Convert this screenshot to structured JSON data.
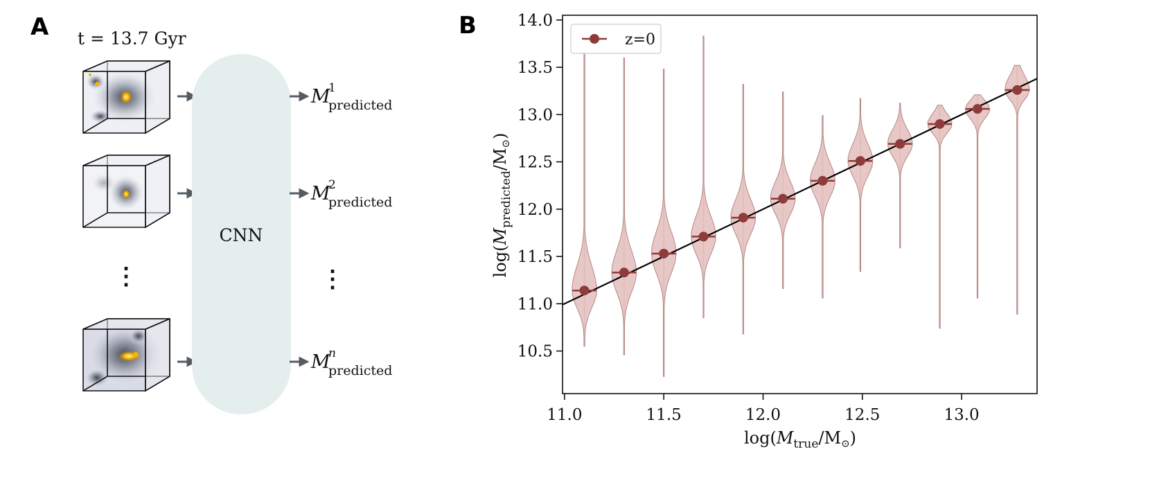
{
  "panel_a": {
    "letter": "A",
    "time_label": "t = 13.7 Gyr",
    "network_label": "CNN",
    "ellipsis": "⋮",
    "outputs": [
      {
        "symbol": "M",
        "superscript": "1",
        "subscript": "predicted"
      },
      {
        "symbol": "M",
        "superscript": "2",
        "subscript": "predicted"
      },
      {
        "symbol": "M",
        "superscript": "n",
        "subscript": "predicted"
      }
    ]
  },
  "panel_b": {
    "letter": "B"
  },
  "colors": {
    "violin_fill": "#e6c2c0",
    "violin_edge": "#b38784",
    "median": "#8e3b3b",
    "whisker": "#8a8a8a",
    "cnn_fill": "#e4eeed",
    "arrow": "#555c61",
    "galaxy_core": "#f5b400"
  },
  "chart_data": {
    "type": "violin",
    "title": "",
    "xlabel": {
      "prefix": "log(",
      "symbol": "M",
      "subscript": "true",
      "suffix": "/M",
      "sun": "⊙",
      "close": ")"
    },
    "ylabel": {
      "prefix": "log(",
      "symbol": "M",
      "subscript": "predicted",
      "suffix": "/M",
      "sun": "⊙",
      "close": ")"
    },
    "xlim": [
      10.99,
      13.38
    ],
    "ylim": [
      10.05,
      14.05
    ],
    "xticks": [
      11.0,
      11.5,
      12.0,
      12.5,
      13.0
    ],
    "xtick_labels": [
      "11.0",
      "11.5",
      "12.0",
      "12.5",
      "13.0"
    ],
    "yticks": [
      10.5,
      11.0,
      11.5,
      12.0,
      12.5,
      13.0,
      13.5,
      14.0
    ],
    "ytick_labels": [
      "10.5",
      "11.0",
      "11.5",
      "12.0",
      "12.5",
      "13.0",
      "13.5",
      "14.0"
    ],
    "identity_line": {
      "x": [
        10.99,
        13.38
      ],
      "y": [
        10.99,
        13.38
      ]
    },
    "legend": {
      "label": "z=0",
      "location": "upper-left"
    },
    "violins": [
      {
        "x": 11.1,
        "median": 11.14,
        "min": 10.55,
        "max": 13.68,
        "q_low": 10.85,
        "q_high": 11.55,
        "width": 0.1
      },
      {
        "x": 11.3,
        "median": 11.33,
        "min": 10.46,
        "max": 13.6,
        "q_low": 11.0,
        "q_high": 11.7,
        "width": 0.1
      },
      {
        "x": 11.5,
        "median": 11.53,
        "min": 10.23,
        "max": 13.48,
        "q_low": 11.2,
        "q_high": 11.9,
        "width": 0.1
      },
      {
        "x": 11.7,
        "median": 11.71,
        "min": 10.85,
        "max": 13.83,
        "q_low": 11.42,
        "q_high": 12.05,
        "width": 0.1
      },
      {
        "x": 11.9,
        "median": 11.91,
        "min": 10.68,
        "max": 13.32,
        "q_low": 11.63,
        "q_high": 12.22,
        "width": 0.1
      },
      {
        "x": 12.1,
        "median": 12.11,
        "min": 11.16,
        "max": 13.24,
        "q_low": 11.85,
        "q_high": 12.4,
        "width": 0.1
      },
      {
        "x": 12.3,
        "median": 12.3,
        "min": 11.06,
        "max": 12.99,
        "q_low": 12.03,
        "q_high": 12.6,
        "width": 0.1
      },
      {
        "x": 12.49,
        "median": 12.51,
        "min": 11.34,
        "max": 13.17,
        "q_low": 12.25,
        "q_high": 12.8,
        "width": 0.1
      },
      {
        "x": 12.69,
        "median": 12.69,
        "min": 11.59,
        "max": 13.12,
        "q_low": 12.48,
        "q_high": 12.93,
        "width": 0.1
      },
      {
        "x": 12.89,
        "median": 12.9,
        "min": 10.74,
        "max": 13.1,
        "q_low": 12.75,
        "q_high": 13.07,
        "width": 0.1
      },
      {
        "x": 13.08,
        "median": 13.06,
        "min": 11.06,
        "max": 13.21,
        "q_low": 12.9,
        "q_high": 13.2,
        "width": 0.1
      },
      {
        "x": 13.28,
        "median": 13.26,
        "min": 10.89,
        "max": 13.52,
        "q_low": 13.1,
        "q_high": 13.5,
        "width": 0.1
      }
    ]
  }
}
